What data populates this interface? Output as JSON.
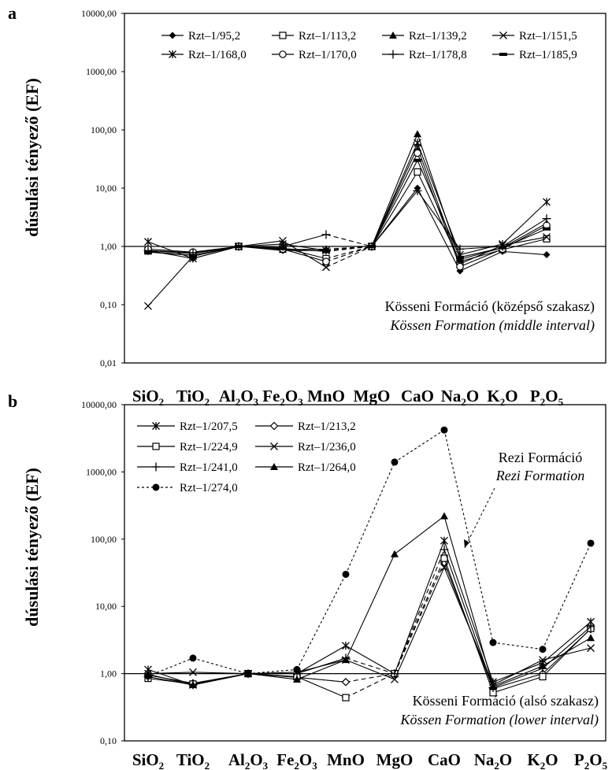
{
  "chart_data": [
    {
      "panel_label": "a",
      "type": "line",
      "yscale": "log",
      "ylim": [
        0.01,
        10000
      ],
      "yticks": [
        "10000,00",
        "1000,00",
        "100,00",
        "10,00",
        "1,00",
        "0,10",
        "0,01"
      ],
      "ylabel": "dúsulási tényező (EF)",
      "categories": [
        "SiO2",
        "TiO2",
        "Al2O3",
        "Fe2O3",
        "MnO",
        "MgO",
        "CaO",
        "Na2O",
        "K2O",
        "P2O5"
      ],
      "category_labels": [
        {
          "base": "SiO",
          "sub": "2"
        },
        {
          "base": "TiO",
          "sub": "2"
        },
        {
          "base": "Al",
          "sub": "2",
          "base2": "O",
          "sub2": "3"
        },
        {
          "base": "Fe",
          "sub": "2",
          "base2": "O",
          "sub2": "3"
        },
        {
          "base": "MnO"
        },
        {
          "base": "MgO"
        },
        {
          "base": "CaO"
        },
        {
          "base": "Na",
          "sub": "2",
          "base2": "O"
        },
        {
          "base": "K",
          "sub": "2",
          "base2": "O"
        },
        {
          "base": "P",
          "sub": "2",
          "base2": "O",
          "sub2": "5"
        }
      ],
      "reference_line": 1,
      "legend_columns": 4,
      "annotations": [
        {
          "text": "Kösseni Formáció (középső szakasz)",
          "style": "normal"
        },
        {
          "text": "Kössen Formation (middle interval)",
          "style": "italic"
        }
      ],
      "series": [
        {
          "name": "Rzt–1/95,2",
          "marker": "diamond",
          "dash": "solid",
          "values": [
            0.85,
            0.62,
            1.0,
            0.85,
            0.85,
            1.0,
            10.0,
            0.38,
            0.82,
            0.72
          ]
        },
        {
          "name": "Rzt–1/113,2",
          "marker": "square-open",
          "dash": "solid",
          "values": [
            0.85,
            0.75,
            1.0,
            0.95,
            0.62,
            1.0,
            19.0,
            0.55,
            0.88,
            1.35
          ]
        },
        {
          "name": "Rzt–1/139,2",
          "marker": "triangle",
          "dash": "solid",
          "values": [
            0.82,
            0.7,
            1.0,
            0.88,
            0.9,
            1.0,
            85.0,
            0.6,
            0.95,
            2.5
          ]
        },
        {
          "name": "Rzt–1/151,5",
          "marker": "x",
          "dash": "solid",
          "values": [
            0.095,
            0.68,
            1.0,
            1.25,
            0.44,
            1.0,
            50.0,
            0.5,
            1.05,
            1.45
          ]
        },
        {
          "name": "Rzt–1/168,0",
          "marker": "star",
          "dash": "solid",
          "values": [
            1.2,
            0.62,
            1.0,
            1.1,
            0.85,
            1.0,
            60.0,
            0.72,
            1.1,
            5.8
          ]
        },
        {
          "name": "Rzt–1/170,0",
          "marker": "circle-open",
          "dash": "solid",
          "values": [
            0.9,
            0.8,
            1.0,
            0.9,
            0.55,
            1.0,
            40.0,
            0.45,
            0.9,
            2.3
          ]
        },
        {
          "name": "Rzt–1/178,8",
          "marker": "plus",
          "dash": "solid",
          "values": [
            0.85,
            0.78,
            1.0,
            1.0,
            1.6,
            1.0,
            9.0,
            0.9,
            1.0,
            3.0
          ]
        },
        {
          "name": "Rzt–1/185,9",
          "marker": "dash",
          "dash": "solid",
          "values": [
            0.8,
            0.7,
            1.0,
            0.92,
            0.82,
            1.0,
            30.0,
            0.65,
            0.95,
            2.0
          ]
        }
      ]
    },
    {
      "panel_label": "b",
      "type": "line",
      "yscale": "log",
      "ylim": [
        0.1,
        10000
      ],
      "yticks": [
        "10000,00",
        "1000,00",
        "100,00",
        "10,00",
        "1,00",
        "0,10"
      ],
      "ylabel": "dúsulási tényező (EF)",
      "categories": [
        "SiO2",
        "TiO2",
        "Al2O3",
        "Fe2O3",
        "MnO",
        "MgO",
        "CaO",
        "Na2O",
        "K2O",
        "P2O5"
      ],
      "category_labels": [
        {
          "base": "SiO",
          "sub": "2"
        },
        {
          "base": "TiO",
          "sub": "2"
        },
        {
          "base": "Al",
          "sub": "2",
          "base2": "O",
          "sub2": "3"
        },
        {
          "base": "Fe",
          "sub": "2",
          "base2": "O",
          "sub2": "3"
        },
        {
          "base": "MnO"
        },
        {
          "base": "MgO"
        },
        {
          "base": "CaO"
        },
        {
          "base": "Na",
          "sub": "2",
          "base2": "O"
        },
        {
          "base": "K",
          "sub": "2",
          "base2": "O"
        },
        {
          "base": "P",
          "sub": "2",
          "base2": "O",
          "sub2": "5"
        }
      ],
      "reference_line": 1,
      "legend_columns": 2,
      "annotations": [
        {
          "text": "Rezi Formáció",
          "style": "normal"
        },
        {
          "text": "Rezi Formation",
          "style": "italic"
        },
        {
          "text": "Kösseni Formáció (alsó szakasz)",
          "style": "normal"
        },
        {
          "text": "Kössen Formation (lower interval)",
          "style": "italic"
        }
      ],
      "series": [
        {
          "name": "Rzt–1/207,5",
          "marker": "star",
          "dash": "solid",
          "values": [
            1.15,
            0.68,
            1.0,
            1.0,
            2.6,
            1.0,
            95.0,
            0.75,
            1.45,
            5.9
          ]
        },
        {
          "name": "Rzt–1/213,2",
          "marker": "diamond-open",
          "dash": "solid",
          "values": [
            0.95,
            0.72,
            1.0,
            0.88,
            0.75,
            1.0,
            45.0,
            0.6,
            1.0,
            4.6
          ]
        },
        {
          "name": "Rzt–1/224,9",
          "marker": "square-open",
          "dash": "solid",
          "values": [
            0.85,
            0.7,
            1.0,
            0.9,
            0.44,
            1.0,
            52.0,
            0.52,
            0.9,
            4.7
          ]
        },
        {
          "name": "Rzt–1/236,0",
          "marker": "x",
          "dash": "solid",
          "values": [
            1.0,
            1.05,
            1.0,
            1.05,
            1.6,
            0.82,
            38.0,
            0.68,
            1.6,
            2.4
          ]
        },
        {
          "name": "Rzt–1/241,0",
          "marker": "plus",
          "dash": "solid",
          "values": [
            0.9,
            0.68,
            1.0,
            1.0,
            1.7,
            1.0,
            70.0,
            0.62,
            1.2,
            5.0
          ]
        },
        {
          "name": "Rzt–1/264,0",
          "marker": "triangle",
          "dash": "solid",
          "values": [
            0.98,
            0.68,
            1.0,
            0.82,
            1.6,
            60.0,
            220.0,
            0.65,
            1.3,
            3.4
          ]
        },
        {
          "name": "Rzt–1/274,0",
          "marker": "circle",
          "dash": "dotted",
          "values": [
            0.92,
            1.7,
            1.0,
            1.15,
            30.0,
            1400.0,
            4200.0,
            2.9,
            2.3,
            87.0
          ]
        }
      ]
    }
  ]
}
